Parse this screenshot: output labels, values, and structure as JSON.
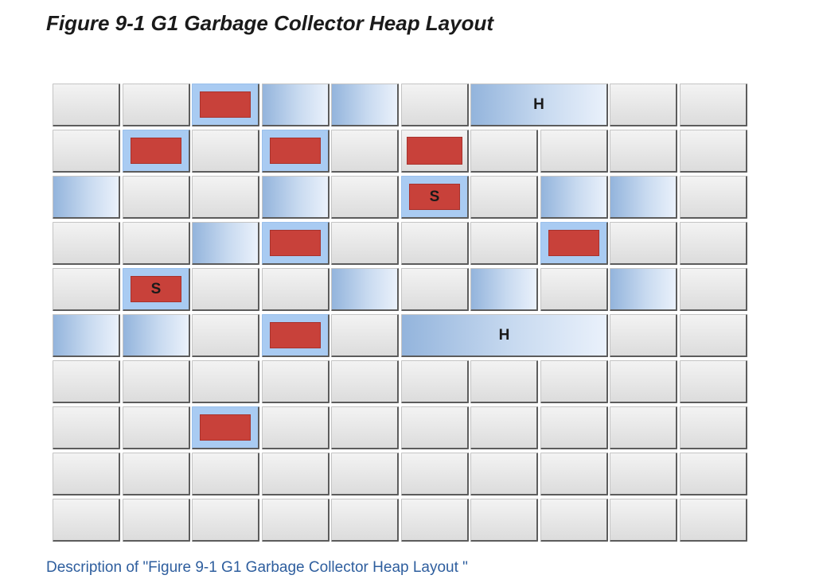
{
  "figure": {
    "title": "Figure 9-1 G1 Garbage Collector Heap Layout",
    "description_link": "Description of \"Figure 9-1 G1 Garbage Collector Heap Layout \""
  },
  "heap_grid": {
    "columns": 10,
    "rows": 10,
    "colors": {
      "free_region": "#e6e6e6",
      "eden_region": "#b9cfea",
      "marked_region": "#a9cbf2",
      "object_block": "#c8413a"
    },
    "labels": {
      "survivor": "S",
      "humongous": "H"
    },
    "regions": [
      {
        "row": 0,
        "col": 2,
        "kind": "old"
      },
      {
        "row": 0,
        "col": 3,
        "kind": "eden"
      },
      {
        "row": 0,
        "col": 4,
        "kind": "eden"
      },
      {
        "row": 0,
        "col": 6,
        "kind": "humongous",
        "span": 2
      },
      {
        "row": 1,
        "col": 1,
        "kind": "old"
      },
      {
        "row": 1,
        "col": 3,
        "kind": "old"
      },
      {
        "row": 1,
        "col": 5,
        "kind": "old-plain"
      },
      {
        "row": 2,
        "col": 0,
        "kind": "eden"
      },
      {
        "row": 2,
        "col": 3,
        "kind": "eden"
      },
      {
        "row": 2,
        "col": 5,
        "kind": "survivor"
      },
      {
        "row": 2,
        "col": 7,
        "kind": "eden"
      },
      {
        "row": 2,
        "col": 8,
        "kind": "eden"
      },
      {
        "row": 3,
        "col": 2,
        "kind": "eden"
      },
      {
        "row": 3,
        "col": 3,
        "kind": "old"
      },
      {
        "row": 3,
        "col": 7,
        "kind": "old"
      },
      {
        "row": 4,
        "col": 1,
        "kind": "survivor"
      },
      {
        "row": 4,
        "col": 4,
        "kind": "eden"
      },
      {
        "row": 4,
        "col": 6,
        "kind": "eden"
      },
      {
        "row": 4,
        "col": 8,
        "kind": "eden"
      },
      {
        "row": 5,
        "col": 0,
        "kind": "eden"
      },
      {
        "row": 5,
        "col": 1,
        "kind": "eden"
      },
      {
        "row": 5,
        "col": 3,
        "kind": "old"
      },
      {
        "row": 5,
        "col": 5,
        "kind": "humongous",
        "span": 3
      },
      {
        "row": 7,
        "col": 2,
        "kind": "old"
      }
    ]
  }
}
